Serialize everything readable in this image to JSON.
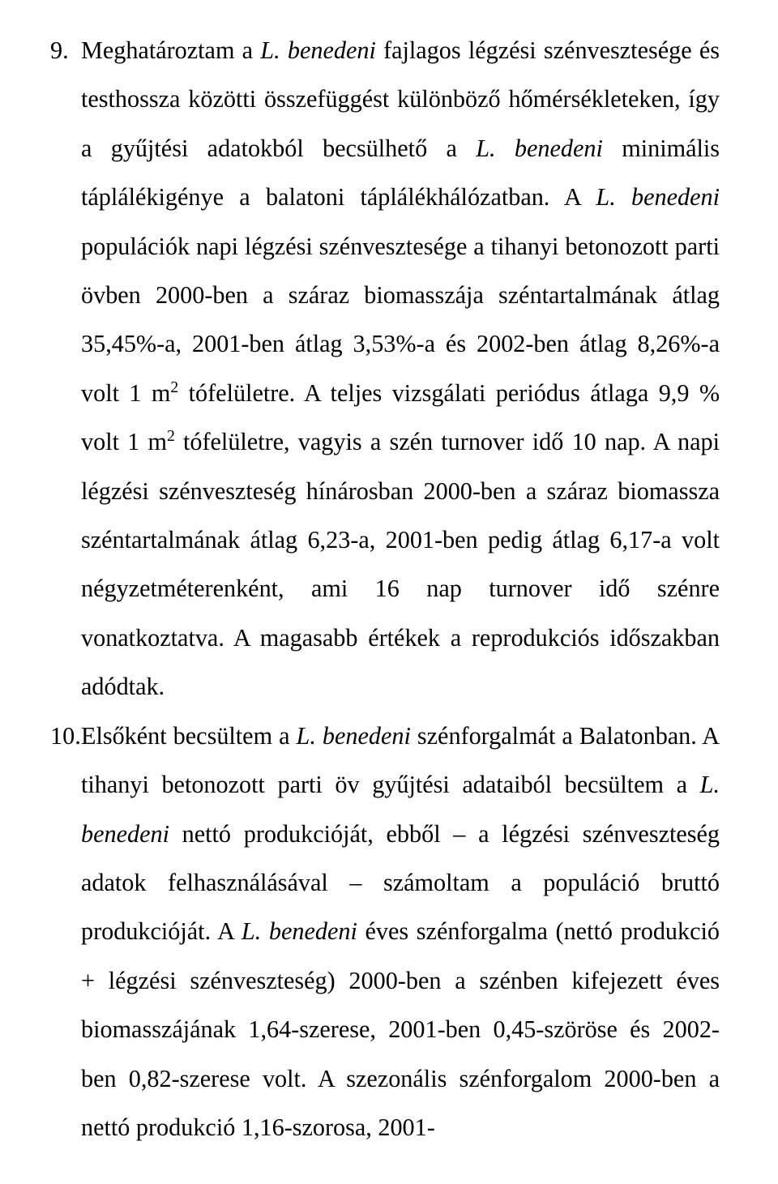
{
  "item9": {
    "num": "9.",
    "sent1a": "Meghatároztam a ",
    "sent1b": "L. benedeni",
    "sent1c": " fajlagos légzési szénvesztesége és testhossza közötti összefüggést különböző hőmérsékleteken, így a gyűjtési adatokból becsülhető a ",
    "sent1d": "L. benedeni",
    "sent1e": " minimális táplálékigénye a balatoni táplálékhálózatban. A ",
    "sent2a": "L. benedeni",
    "sent2b": " populációk napi légzési szénvesztesége a tihanyi betonozott parti övben 2000-ben a száraz biomasszája széntartalmának átlag 35,45%-a, 2001-ben átlag 3,53%-a és 2002-ben átlag 8,26%-a volt 1 m",
    "sup1": "2",
    "sent2c": " tófelületre. A teljes vizsgálati periódus átlaga 9,9 % volt 1 m",
    "sup2": "2",
    "sent2d": " tófelületre, vagyis a szén turnover idő 10 nap. A napi légzési szénveszteség hínárosban 2000-ben a száraz biomassza széntartalmának átlag 6,23-a, 2001-ben pedig átlag 6,17-a volt négyzetméterenként, ami 16 nap turnover idő szénre vonatkoztatva. A magasabb értékek a reprodukciós időszakban adódtak."
  },
  "item10": {
    "num": "10.",
    "sent1a": "Elsőként becsültem a ",
    "sent1b": "L. benedeni",
    "sent1c": " szénforgalmát a Balatonban. A tihanyi betonozott parti öv gyűjtési adataiból becsültem a ",
    "sent1d": "L. benedeni",
    "sent1e": " nettó produkcióját, ebből – a légzési szénveszteség adatok felhasználásával – számoltam a populáció bruttó produkcióját. A ",
    "sent2a": "L. benedeni",
    "sent2b": " éves szénforgalma (nettó produkció + légzési szénveszteség) 2000-ben a szénben kifejezett éves biomasszájának 1,64-szerese, 2001-ben 0,45-szöröse és 2002-ben 0,82-szerese volt. A szezonális szénforgalom 2000-ben a nettó produkció 1,16-szorosa, 2001-"
  }
}
